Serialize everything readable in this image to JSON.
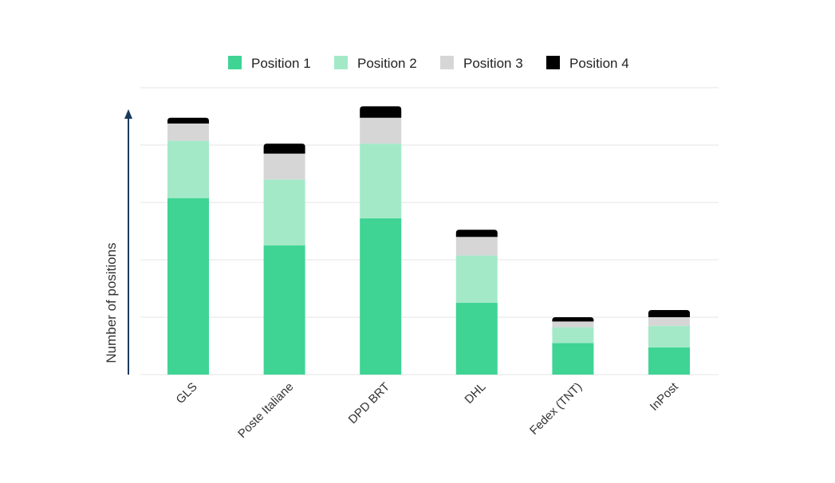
{
  "chart_data": {
    "type": "bar",
    "stacked": true,
    "title": "",
    "xlabel": "",
    "ylabel": "Number of positions",
    "ylim": [
      0,
      100
    ],
    "grid": true,
    "legend_position": "top",
    "categories": [
      "GLS",
      "Poste Italiane",
      "DPD BRT",
      "DHL",
      "Fedex (TNT)",
      "InPost"
    ],
    "series": [
      {
        "name": "Position 1",
        "color": "#3fd494",
        "values": [
          61.5,
          45.0,
          54.5,
          25.0,
          11.0,
          9.5
        ]
      },
      {
        "name": "Position 2",
        "color": "#a3e9c8",
        "values": [
          20.0,
          23.0,
          26.0,
          16.5,
          5.5,
          7.5
        ]
      },
      {
        "name": "Position 3",
        "color": "#d6d6d6",
        "values": [
          6.0,
          9.0,
          9.0,
          6.5,
          2.0,
          3.0
        ]
      },
      {
        "name": "Position 4",
        "color": "#000000",
        "values": [
          2.0,
          3.5,
          4.0,
          2.5,
          1.5,
          2.5
        ]
      }
    ]
  },
  "axis_color": "#1a3a5c",
  "grid_color": "#e6e6e6"
}
